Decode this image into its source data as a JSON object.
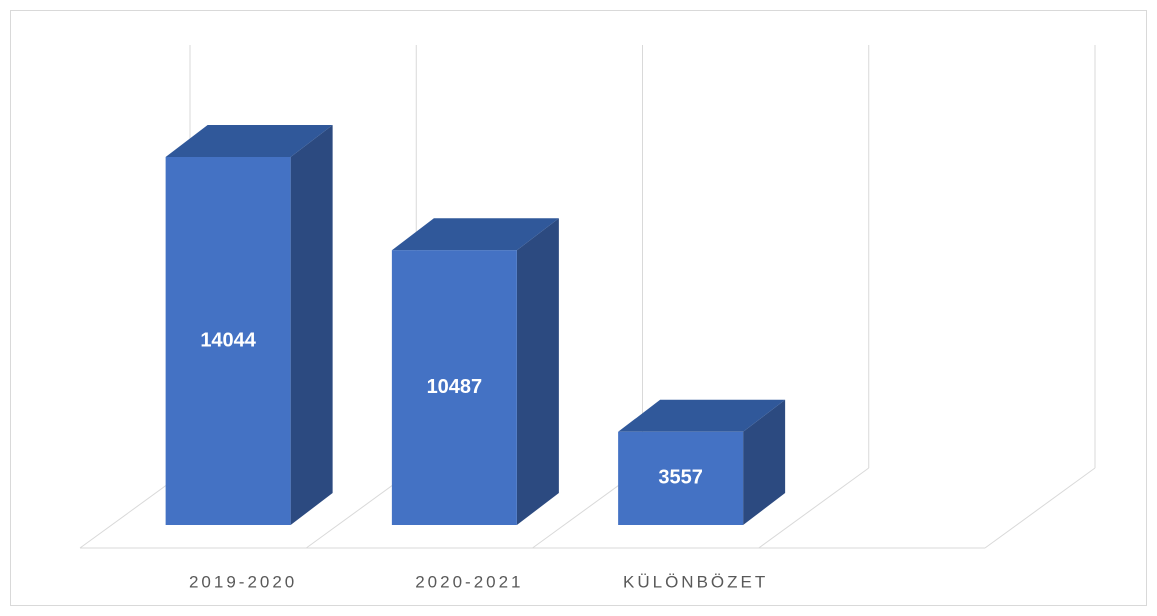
{
  "chart_data": {
    "type": "bar3d",
    "categories": [
      "2019-2020",
      "2020-2021",
      "KÜLÖNBÖZET",
      null
    ],
    "values": [
      14044,
      10487,
      3557,
      null
    ],
    "color": "#4472c4"
  }
}
